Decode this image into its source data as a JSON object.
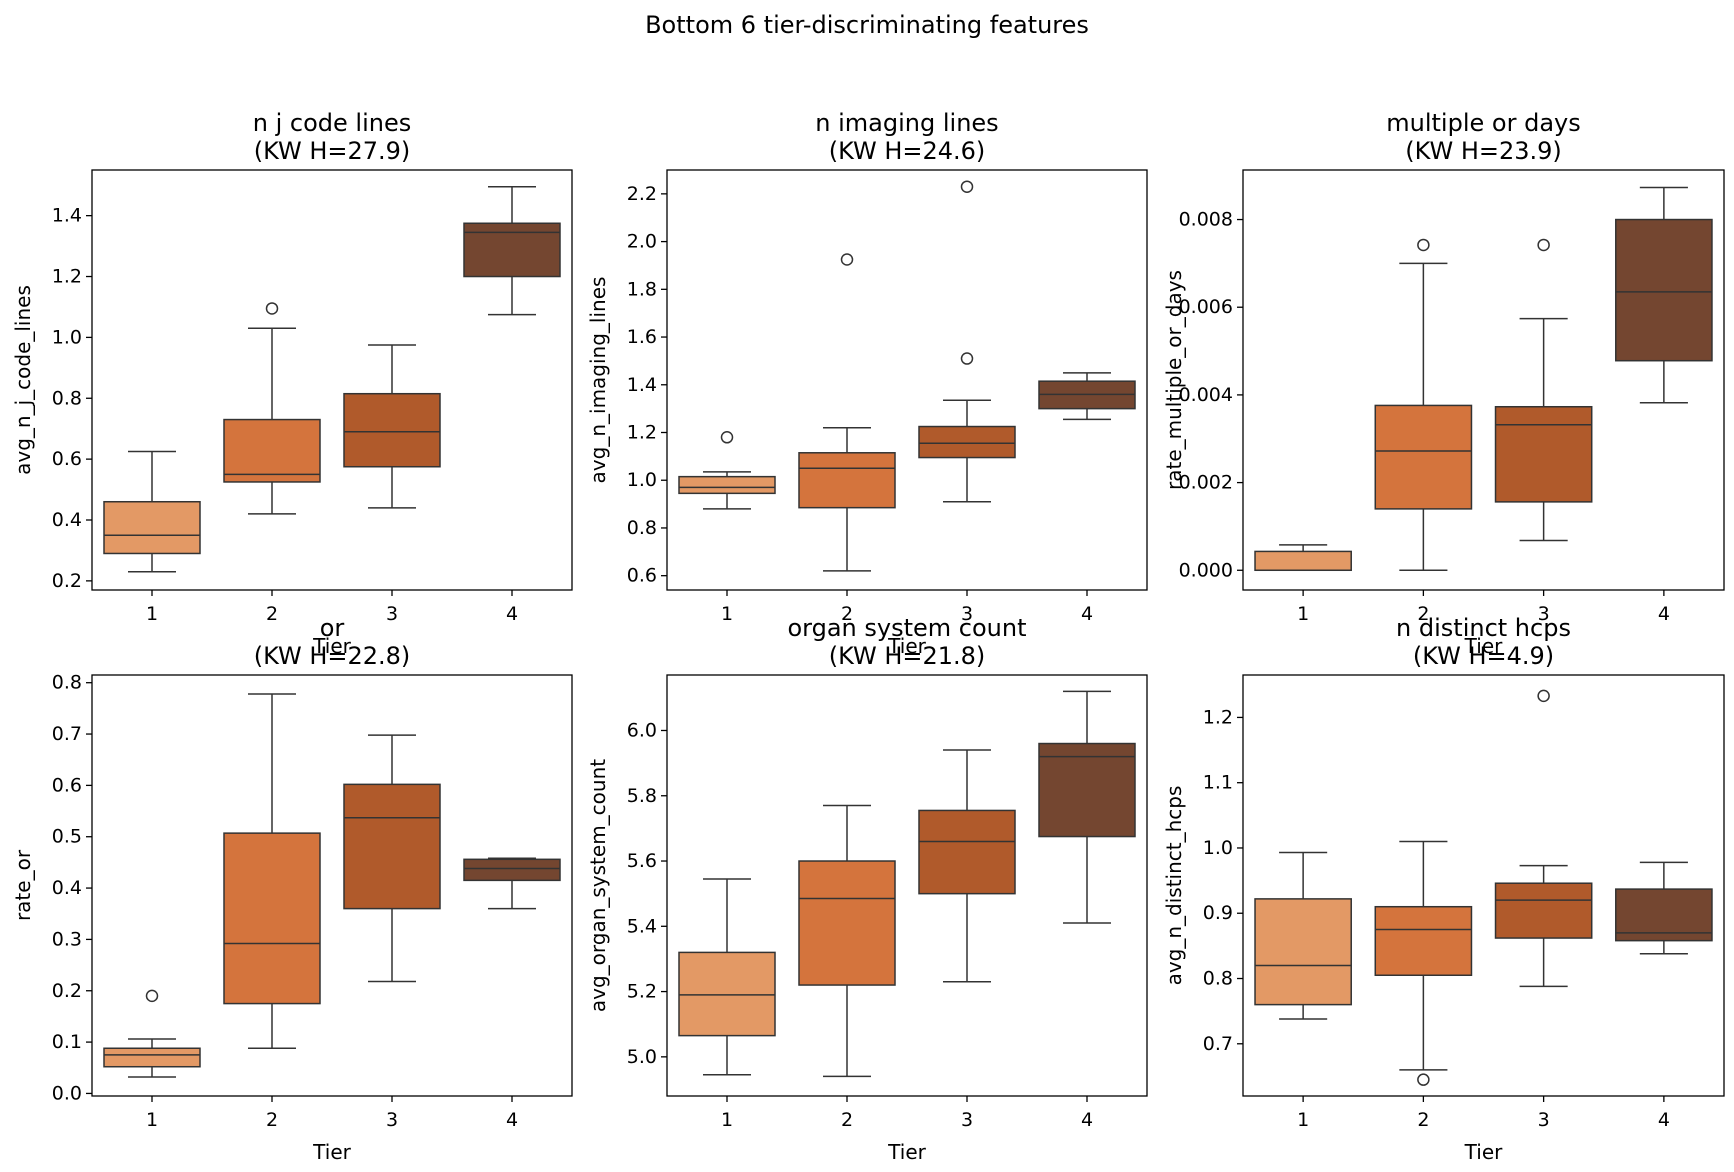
{
  "figure": {
    "title": "Bottom 6 tier-discriminating features"
  },
  "colors": {
    "tier_fills": [
      "#e39965",
      "#d4743d",
      "#b05a2b",
      "#744630"
    ],
    "edge": "#333333",
    "axis": "#000000"
  },
  "chart_data": [
    {
      "type": "box",
      "title_line1": "n j code lines",
      "title_line2": "(KW H=27.9)",
      "xlabel": "Tier",
      "ylabel": "avg_n_j_code_lines",
      "categories": [
        "1",
        "2",
        "3",
        "4"
      ],
      "ylim": [
        0.17,
        1.55
      ],
      "yticks": [
        0.2,
        0.4,
        0.6,
        0.8,
        1.0,
        1.2,
        1.4
      ],
      "ytick_labels": [
        "0.2",
        "0.4",
        "0.6",
        "0.8",
        "1.0",
        "1.2",
        "1.4"
      ],
      "boxes": [
        {
          "tier": "1",
          "whislo": 0.23,
          "q1": 0.29,
          "med": 0.35,
          "q3": 0.46,
          "whishi": 0.625,
          "fliers": []
        },
        {
          "tier": "2",
          "whislo": 0.42,
          "q1": 0.525,
          "med": 0.55,
          "q3": 0.73,
          "whishi": 1.03,
          "fliers": [
            1.095
          ]
        },
        {
          "tier": "3",
          "whislo": 0.44,
          "q1": 0.575,
          "med": 0.69,
          "q3": 0.815,
          "whishi": 0.975,
          "fliers": []
        },
        {
          "tier": "4",
          "whislo": 1.075,
          "q1": 1.2,
          "med": 1.345,
          "q3": 1.375,
          "whishi": 1.495,
          "fliers": []
        }
      ]
    },
    {
      "type": "box",
      "title_line1": "n imaging lines",
      "title_line2": "(KW H=24.6)",
      "xlabel": "Tier",
      "ylabel": "avg_n_imaging_lines",
      "categories": [
        "1",
        "2",
        "3",
        "4"
      ],
      "ylim": [
        0.54,
        2.3
      ],
      "yticks": [
        0.6,
        0.8,
        1.0,
        1.2,
        1.4,
        1.6,
        1.8,
        2.0,
        2.2
      ],
      "ytick_labels": [
        "0.6",
        "0.8",
        "1.0",
        "1.2",
        "1.4",
        "1.6",
        "1.8",
        "2.0",
        "2.2"
      ],
      "boxes": [
        {
          "tier": "1",
          "whislo": 0.88,
          "q1": 0.945,
          "med": 0.97,
          "q3": 1.015,
          "whishi": 1.035,
          "fliers": [
            1.18
          ]
        },
        {
          "tier": "2",
          "whislo": 0.62,
          "q1": 0.885,
          "med": 1.05,
          "q3": 1.115,
          "whishi": 1.22,
          "fliers": [
            1.925
          ]
        },
        {
          "tier": "3",
          "whislo": 0.91,
          "q1": 1.095,
          "med": 1.155,
          "q3": 1.225,
          "whishi": 1.335,
          "fliers": [
            1.51,
            2.23
          ]
        },
        {
          "tier": "4",
          "whislo": 1.255,
          "q1": 1.3,
          "med": 1.36,
          "q3": 1.415,
          "whishi": 1.45,
          "fliers": []
        }
      ]
    },
    {
      "type": "box",
      "title_line1": "multiple or days",
      "title_line2": "(KW H=23.9)",
      "xlabel": "Tier",
      "ylabel": "rate_multiple_or_days",
      "categories": [
        "1",
        "2",
        "3",
        "4"
      ],
      "ylim": [
        -0.00045,
        0.00913
      ],
      "yticks": [
        0,
        0.002,
        0.004,
        0.006,
        0.008
      ],
      "ytick_labels": [
        "0.000",
        "0.002",
        "0.004",
        "0.006",
        "0.008"
      ],
      "boxes": [
        {
          "tier": "1",
          "whislo": 0.0,
          "q1": 0.0,
          "med": 0.0,
          "q3": 0.00043,
          "whishi": 0.00058,
          "fliers": []
        },
        {
          "tier": "2",
          "whislo": 0.0,
          "q1": 0.0014,
          "med": 0.00272,
          "q3": 0.00376,
          "whishi": 0.007,
          "fliers": [
            0.00742
          ]
        },
        {
          "tier": "3",
          "whislo": 0.00068,
          "q1": 0.00156,
          "med": 0.00332,
          "q3": 0.00373,
          "whishi": 0.00574,
          "fliers": [
            0.00742
          ]
        },
        {
          "tier": "4",
          "whislo": 0.00382,
          "q1": 0.00478,
          "med": 0.00635,
          "q3": 0.008,
          "whishi": 0.00873,
          "fliers": []
        }
      ]
    },
    {
      "type": "box",
      "title_line1": "or",
      "title_line2": "(KW H=22.8)",
      "xlabel": "Tier",
      "ylabel": "rate_or",
      "categories": [
        "1",
        "2",
        "3",
        "4"
      ],
      "ylim": [
        -0.005,
        0.815
      ],
      "yticks": [
        0,
        0.1,
        0.2,
        0.3,
        0.4,
        0.5,
        0.6,
        0.7,
        0.8
      ],
      "ytick_labels": [
        "0.0",
        "0.1",
        "0.2",
        "0.3",
        "0.4",
        "0.5",
        "0.6",
        "0.7",
        "0.8"
      ],
      "boxes": [
        {
          "tier": "1",
          "whislo": 0.032,
          "q1": 0.052,
          "med": 0.075,
          "q3": 0.088,
          "whishi": 0.106,
          "fliers": [
            0.19
          ]
        },
        {
          "tier": "2",
          "whislo": 0.088,
          "q1": 0.175,
          "med": 0.292,
          "q3": 0.507,
          "whishi": 0.778,
          "fliers": []
        },
        {
          "tier": "3",
          "whislo": 0.218,
          "q1": 0.36,
          "med": 0.537,
          "q3": 0.602,
          "whishi": 0.698,
          "fliers": []
        },
        {
          "tier": "4",
          "whislo": 0.36,
          "q1": 0.415,
          "med": 0.438,
          "q3": 0.456,
          "whishi": 0.458,
          "fliers": []
        }
      ]
    },
    {
      "type": "box",
      "title_line1": "organ system count",
      "title_line2": "(KW H=21.8)",
      "xlabel": "Tier",
      "ylabel": "avg_organ_system_count",
      "categories": [
        "1",
        "2",
        "3",
        "4"
      ],
      "ylim": [
        4.88,
        6.17
      ],
      "yticks": [
        5.0,
        5.2,
        5.4,
        5.6,
        5.8,
        6.0
      ],
      "ytick_labels": [
        "5.0",
        "5.2",
        "5.4",
        "5.6",
        "5.8",
        "6.0"
      ],
      "boxes": [
        {
          "tier": "1",
          "whislo": 4.945,
          "q1": 5.065,
          "med": 5.19,
          "q3": 5.32,
          "whishi": 5.545,
          "fliers": []
        },
        {
          "tier": "2",
          "whislo": 4.94,
          "q1": 5.22,
          "med": 5.485,
          "q3": 5.6,
          "whishi": 5.77,
          "fliers": []
        },
        {
          "tier": "3",
          "whislo": 5.23,
          "q1": 5.5,
          "med": 5.66,
          "q3": 5.755,
          "whishi": 5.94,
          "fliers": []
        },
        {
          "tier": "4",
          "whislo": 5.41,
          "q1": 5.675,
          "med": 5.92,
          "q3": 5.96,
          "whishi": 6.12,
          "fliers": []
        }
      ]
    },
    {
      "type": "box",
      "title_line1": "n distinct hcps",
      "title_line2": "(KW H=4.9)",
      "xlabel": "Tier",
      "ylabel": "avg_n_distinct_hcps",
      "categories": [
        "1",
        "2",
        "3",
        "4"
      ],
      "ylim": [
        0.62,
        1.265
      ],
      "yticks": [
        0.7,
        0.8,
        0.9,
        1.0,
        1.1,
        1.2
      ],
      "ytick_labels": [
        "0.7",
        "0.8",
        "0.9",
        "1.0",
        "1.1",
        "1.2"
      ],
      "boxes": [
        {
          "tier": "1",
          "whislo": 0.738,
          "q1": 0.76,
          "med": 0.82,
          "q3": 0.922,
          "whishi": 0.993,
          "fliers": []
        },
        {
          "tier": "2",
          "whislo": 0.66,
          "q1": 0.805,
          "med": 0.875,
          "q3": 0.91,
          "whishi": 1.01,
          "fliers": [
            0.645
          ]
        },
        {
          "tier": "3",
          "whislo": 0.788,
          "q1": 0.862,
          "med": 0.92,
          "q3": 0.946,
          "whishi": 0.973,
          "fliers": [
            1.233
          ]
        },
        {
          "tier": "4",
          "whislo": 0.838,
          "q1": 0.858,
          "med": 0.87,
          "q3": 0.937,
          "whishi": 0.978,
          "fliers": []
        }
      ]
    }
  ]
}
